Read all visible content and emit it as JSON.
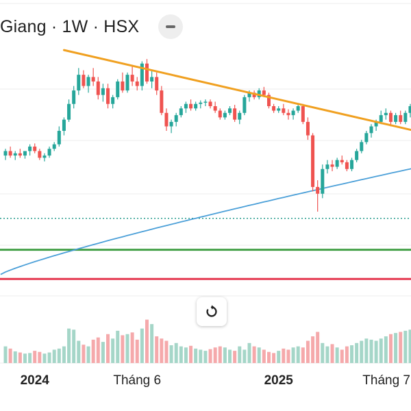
{
  "header": {
    "title": "Giang · 1W · HSX",
    "collapse_icon": "minus-icon"
  },
  "reset_button": {
    "icon": "reset-rotate-icon"
  },
  "colors": {
    "up": "#26a69a",
    "down": "#ef5350",
    "up_volume": "#a5d6c8",
    "down_volume": "#f5a9ab",
    "trendline": "#f0a020",
    "ma_line": "#4a9fd8",
    "support": "#43a047",
    "resistance": "#e53950",
    "dotted_level": "#2a9d8f"
  },
  "chart_data": {
    "type": "candlestick",
    "title": "",
    "xlabel": "",
    "ylabel": "",
    "x_tick_labels": [
      {
        "label": "2024",
        "bold": true,
        "index": 6
      },
      {
        "label": "Tháng 6",
        "bold": false,
        "index": 27
      },
      {
        "label": "2025",
        "bold": true,
        "index": 56
      },
      {
        "label": "Tháng 7",
        "bold": false,
        "index": 82
      }
    ],
    "ohlc": [
      [
        100.5,
        102.0,
        99.5,
        101.5
      ],
      [
        101.5,
        102.5,
        100.0,
        100.5
      ],
      [
        100.5,
        101.5,
        99.5,
        101.0
      ],
      [
        101.0,
        102.0,
        100.0,
        100.5
      ],
      [
        100.5,
        101.5,
        99.8,
        101.5
      ],
      [
        101.5,
        103.0,
        100.5,
        102.5
      ],
      [
        102.5,
        103.2,
        101.0,
        101.5
      ],
      [
        101.5,
        102.0,
        99.5,
        100.0
      ],
      [
        100.0,
        101.0,
        99.2,
        100.5
      ],
      [
        100.5,
        102.5,
        100.0,
        102.0
      ],
      [
        102.0,
        103.5,
        101.5,
        103.0
      ],
      [
        103.0,
        107.0,
        102.5,
        106.0
      ],
      [
        106.0,
        109.0,
        105.0,
        108.5
      ],
      [
        108.5,
        113.0,
        108.0,
        112.0
      ],
      [
        112.0,
        116.0,
        111.0,
        115.0
      ],
      [
        115.0,
        120.0,
        114.0,
        118.5
      ],
      [
        118.5,
        119.5,
        115.5,
        116.0
      ],
      [
        116.0,
        118.5,
        114.5,
        118.0
      ],
      [
        118.0,
        120.0,
        116.0,
        117.0
      ],
      [
        117.0,
        118.0,
        113.0,
        114.0
      ],
      [
        114.0,
        116.5,
        112.5,
        115.5
      ],
      [
        115.5,
        116.5,
        111.0,
        112.0
      ],
      [
        112.0,
        114.0,
        111.0,
        113.5
      ],
      [
        113.5,
        117.5,
        113.0,
        117.0
      ],
      [
        117.0,
        119.0,
        114.5,
        115.0
      ],
      [
        115.0,
        119.0,
        114.5,
        118.5
      ],
      [
        118.5,
        120.5,
        116.0,
        117.0
      ],
      [
        117.0,
        118.0,
        115.0,
        116.0
      ],
      [
        116.0,
        121.5,
        115.0,
        121.0
      ],
      [
        121.0,
        122.0,
        116.5,
        117.0
      ],
      [
        117.0,
        119.5,
        115.5,
        118.0
      ],
      [
        118.0,
        119.0,
        114.0,
        115.0
      ],
      [
        115.0,
        116.0,
        109.5,
        110.0
      ],
      [
        110.0,
        111.0,
        106.0,
        107.0
      ],
      [
        107.0,
        108.5,
        105.5,
        108.0
      ],
      [
        108.0,
        110.0,
        107.0,
        109.5
      ],
      [
        109.5,
        111.5,
        109.0,
        111.0
      ],
      [
        111.0,
        112.5,
        110.0,
        112.0
      ],
      [
        112.0,
        113.0,
        110.5,
        111.0
      ],
      [
        111.0,
        112.5,
        110.5,
        112.0
      ],
      [
        112.0,
        112.8,
        111.0,
        112.3
      ],
      [
        112.3,
        113.0,
        111.5,
        112.5
      ],
      [
        112.5,
        113.0,
        111.0,
        111.5
      ],
      [
        111.5,
        112.5,
        110.0,
        110.5
      ],
      [
        110.5,
        111.0,
        108.5,
        109.0
      ],
      [
        109.0,
        110.5,
        108.5,
        110.0
      ],
      [
        110.0,
        111.5,
        109.5,
        111.0
      ],
      [
        111.0,
        111.8,
        108.0,
        108.5
      ],
      [
        108.5,
        110.5,
        107.5,
        110.0
      ],
      [
        110.0,
        114.0,
        109.5,
        113.5
      ],
      [
        113.5,
        115.0,
        112.5,
        114.5
      ],
      [
        114.5,
        115.0,
        113.0,
        113.5
      ],
      [
        113.5,
        115.5,
        113.0,
        115.0
      ],
      [
        115.0,
        115.8,
        113.5,
        114.0
      ],
      [
        114.0,
        114.5,
        111.0,
        111.5
      ],
      [
        111.5,
        112.0,
        110.0,
        110.5
      ],
      [
        110.5,
        111.5,
        110.0,
        111.0
      ],
      [
        111.0,
        112.0,
        109.5,
        110.0
      ],
      [
        110.0,
        110.8,
        108.5,
        109.5
      ],
      [
        109.5,
        111.0,
        108.5,
        110.5
      ],
      [
        110.5,
        112.0,
        110.0,
        111.5
      ],
      [
        111.5,
        112.0,
        107.5,
        108.0
      ],
      [
        108.0,
        109.0,
        104.0,
        105.0
      ],
      [
        105.0,
        105.5,
        92.5,
        93.5
      ],
      [
        93.5,
        95.0,
        88.0,
        92.0
      ],
      [
        92.0,
        98.5,
        91.0,
        97.5
      ],
      [
        97.5,
        99.5,
        96.5,
        98.5
      ],
      [
        98.5,
        99.5,
        97.0,
        98.0
      ],
      [
        98.0,
        100.0,
        97.5,
        99.5
      ],
      [
        99.5,
        100.5,
        98.5,
        99.0
      ],
      [
        99.0,
        99.5,
        97.0,
        97.5
      ],
      [
        97.5,
        100.0,
        97.0,
        99.5
      ],
      [
        99.5,
        102.0,
        99.0,
        101.5
      ],
      [
        101.5,
        104.0,
        101.0,
        103.5
      ],
      [
        103.5,
        106.0,
        103.0,
        105.5
      ],
      [
        105.5,
        107.5,
        104.5,
        107.0
      ],
      [
        107.0,
        108.5,
        106.0,
        108.0
      ],
      [
        108.0,
        110.5,
        107.5,
        109.5
      ],
      [
        109.5,
        111.0,
        108.5,
        110.0
      ],
      [
        110.0,
        110.5,
        107.0,
        108.0
      ],
      [
        108.0,
        110.0,
        107.5,
        109.5
      ],
      [
        109.5,
        110.5,
        107.5,
        108.0
      ],
      [
        108.0,
        110.5,
        107.5,
        110.0
      ],
      [
        110.0,
        112.0,
        109.0,
        111.5
      ]
    ],
    "volume": [
      30,
      26,
      21,
      19,
      17,
      18,
      22,
      20,
      17,
      19,
      24,
      26,
      30,
      62,
      60,
      40,
      33,
      30,
      42,
      46,
      38,
      52,
      44,
      58,
      50,
      52,
      55,
      42,
      62,
      78,
      70,
      48,
      44,
      40,
      32,
      36,
      30,
      28,
      31,
      26,
      24,
      22,
      25,
      28,
      30,
      28,
      24,
      22,
      30,
      24,
      36,
      30,
      28,
      24,
      20,
      18,
      22,
      26,
      24,
      28,
      30,
      28,
      40,
      48,
      56,
      36,
      30,
      34,
      28,
      24,
      30,
      32,
      36,
      40,
      44,
      42,
      40,
      44,
      48,
      52,
      54,
      56,
      58,
      60
    ],
    "ma_line": {
      "name": "",
      "start": 74.0,
      "end": 98.0
    },
    "trendline": {
      "start_index": 12,
      "start_price": 124.0,
      "end_index": 84,
      "end_price": 106.0
    },
    "horizontal_levels": [
      {
        "price": 86.5,
        "style": "dotted"
      },
      {
        "price": 79.5,
        "style": "solid-green"
      },
      {
        "price": 73.0,
        "style": "solid-red"
      }
    ]
  }
}
